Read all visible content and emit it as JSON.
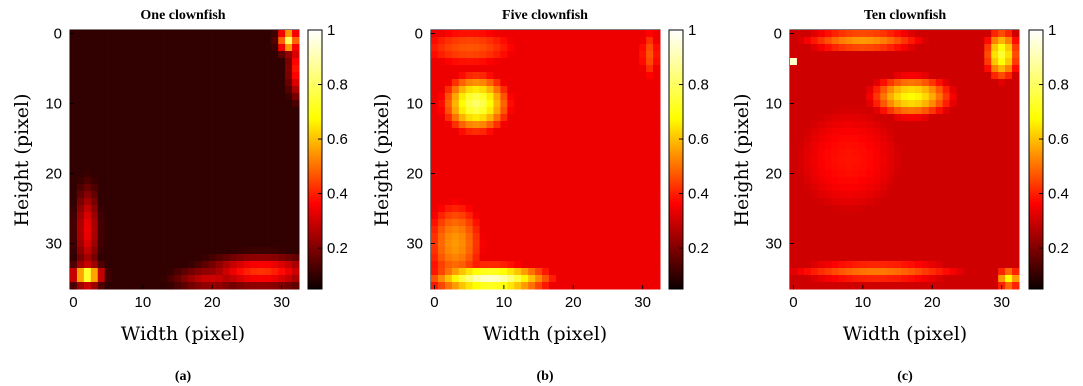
{
  "chart_data": [
    {
      "type": "heatmap",
      "title": "One clownfish",
      "xlabel": "Width (pixel)",
      "ylabel": "Height (pixel)",
      "caption": "(a)",
      "xticks": [
        0,
        10,
        20,
        30
      ],
      "yticks": [
        0,
        10,
        20,
        30
      ],
      "xlim": [
        0,
        32
      ],
      "ylim": [
        0,
        36
      ],
      "colorbar_ticks": [
        0.2,
        0.4,
        0.6,
        0.8,
        1
      ],
      "colorbar_tick_labels": [
        "0.2",
        "0.4",
        "0.6",
        "0.8",
        "1"
      ],
      "colorbar_range": [
        0.05,
        1
      ],
      "colormap": "hot",
      "grid": false,
      "hotspots": [
        {
          "x": 2,
          "y": 34.5,
          "value": 0.9,
          "sx": 1.4,
          "sy": 1.0
        },
        {
          "x": 2,
          "y": 28,
          "value": 0.35,
          "sx": 1.2,
          "sy": 4.5
        },
        {
          "x": 27,
          "y": 34,
          "value": 0.45,
          "sx": 5.5,
          "sy": 1.6
        },
        {
          "x": 20,
          "y": 35,
          "value": 0.3,
          "sx": 4,
          "sy": 1.2
        },
        {
          "x": 31,
          "y": 1,
          "value": 0.85,
          "sx": 1.0,
          "sy": 1.2
        },
        {
          "x": 32,
          "y": 5,
          "value": 0.4,
          "sx": 0.8,
          "sy": 3
        }
      ],
      "background_value": 0.06
    },
    {
      "type": "heatmap",
      "title": "Five clownfish",
      "xlabel": "Width (pixel)",
      "ylabel": "Height (pixel)",
      "caption": "(b)",
      "xticks": [
        0,
        10,
        20,
        30
      ],
      "yticks": [
        0,
        10,
        20,
        30
      ],
      "xlim": [
        0,
        32
      ],
      "ylim": [
        0,
        36
      ],
      "colorbar_ticks": [
        0.2,
        0.4,
        0.6,
        0.8,
        1
      ],
      "colorbar_tick_labels": [
        "0.2",
        "0.4",
        "0.6",
        "0.8",
        "1"
      ],
      "colorbar_range": [
        0.05,
        1
      ],
      "colormap": "hot",
      "grid": false,
      "hotspots": [
        {
          "x": 6,
          "y": 10,
          "value": 0.85,
          "sx": 4,
          "sy": 3.5
        },
        {
          "x": 8,
          "y": 35,
          "value": 0.95,
          "sx": 7,
          "sy": 1.6
        },
        {
          "x": 3,
          "y": 30,
          "value": 0.6,
          "sx": 4,
          "sy": 6
        },
        {
          "x": 5,
          "y": 2,
          "value": 0.5,
          "sx": 8,
          "sy": 3
        },
        {
          "x": 16,
          "y": 20,
          "value": 0.3,
          "sx": 12,
          "sy": 18
        },
        {
          "x": 31,
          "y": 3,
          "value": 0.5,
          "sx": 1.5,
          "sy": 4
        }
      ],
      "background_value": 0.35
    },
    {
      "type": "heatmap",
      "title": "Ten clownfish",
      "xlabel": "Width (pixel)",
      "ylabel": "Height (pixel)",
      "caption": "(c)",
      "xticks": [
        0,
        10,
        20,
        30
      ],
      "yticks": [
        0,
        10,
        20,
        30
      ],
      "xlim": [
        0,
        32
      ],
      "ylim": [
        0,
        36
      ],
      "colorbar_ticks": [
        0.2,
        0.4,
        0.6,
        0.8,
        1
      ],
      "colorbar_tick_labels": [
        "0.2",
        "0.4",
        "0.6",
        "0.8",
        "1"
      ],
      "colorbar_range": [
        0.05,
        1
      ],
      "colormap": "hot",
      "grid": false,
      "hotspots": [
        {
          "x": 17,
          "y": 9,
          "value": 0.75,
          "sx": 5,
          "sy": 2.5
        },
        {
          "x": 30,
          "y": 3,
          "value": 0.8,
          "sx": 2,
          "sy": 3
        },
        {
          "x": 10,
          "y": 1,
          "value": 0.6,
          "sx": 8,
          "sy": 1.5
        },
        {
          "x": 12,
          "y": 34,
          "value": 0.55,
          "sx": 12,
          "sy": 1.4
        },
        {
          "x": 31,
          "y": 35,
          "value": 0.75,
          "sx": 1.5,
          "sy": 1.2
        },
        {
          "x": 0,
          "y": 4,
          "value": 0.95,
          "sx": 0.6,
          "sy": 0.4
        },
        {
          "x": 8,
          "y": 18,
          "value": 0.4,
          "sx": 10,
          "sy": 10
        }
      ],
      "background_value": 0.3
    }
  ]
}
